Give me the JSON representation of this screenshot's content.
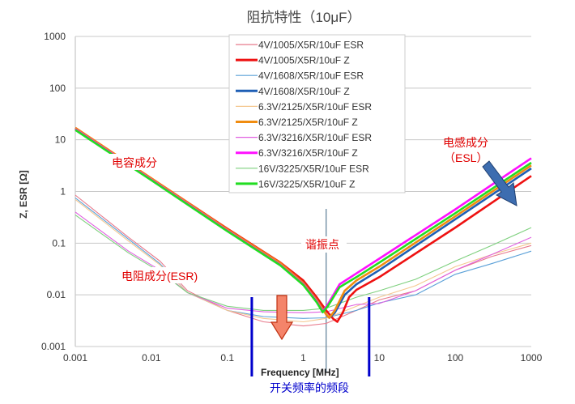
{
  "chart_data": {
    "type": "line",
    "title": "阻抗特性（10μF）",
    "xlabel": "Frequency  [MHz]",
    "ylabel": "Z, ESR [Ω]",
    "xscale": "log",
    "yscale": "log",
    "xlim": [
      0.001,
      1000
    ],
    "ylim": [
      0.001,
      1000
    ],
    "xticks": [
      "0.001",
      "0.01",
      "0.1",
      "1",
      "10",
      "100",
      "1000"
    ],
    "yticks": [
      "0.001",
      "0.01",
      "0.1",
      "1",
      "10",
      "100",
      "1000"
    ],
    "legend_position": "top-center",
    "grid": "horizontal",
    "series": [
      {
        "name": "4V/1005/X5R/10uF ESR",
        "color": "#e87a8c",
        "kind": "esr",
        "x": [
          0.001,
          0.005,
          0.013,
          0.03,
          0.1,
          0.3,
          1,
          2,
          5,
          10,
          30,
          100,
          300,
          1000
        ],
        "y": [
          0.85,
          0.13,
          0.045,
          0.012,
          0.005,
          0.003,
          0.0025,
          0.0028,
          0.005,
          0.008,
          0.012,
          0.03,
          0.055,
          0.09
        ]
      },
      {
        "name": "4V/1005/X5R/10uF Z",
        "color": "#ee1111",
        "kind": "z",
        "x": [
          0.001,
          0.01,
          0.1,
          0.5,
          1,
          1.5,
          2,
          2.5,
          2.8,
          3.3,
          4,
          5,
          10,
          100,
          1000
        ],
        "y": [
          17,
          1.8,
          0.19,
          0.042,
          0.019,
          0.009,
          0.005,
          0.0034,
          0.003,
          0.0045,
          0.009,
          0.0125,
          0.022,
          0.2,
          2.0
        ]
      },
      {
        "name": "4V/1608/X5R/10uF ESR",
        "color": "#5aa0d8",
        "kind": "esr",
        "x": [
          0.001,
          0.005,
          0.013,
          0.03,
          0.1,
          0.3,
          1,
          2,
          5,
          10,
          30,
          100,
          300,
          1000
        ],
        "y": [
          0.75,
          0.12,
          0.04,
          0.011,
          0.005,
          0.0038,
          0.0035,
          0.0036,
          0.005,
          0.007,
          0.01,
          0.025,
          0.04,
          0.07
        ]
      },
      {
        "name": "4V/1608/X5R/10uF Z",
        "color": "#1f5fb5",
        "kind": "z",
        "x": [
          0.001,
          0.01,
          0.1,
          0.5,
          1,
          1.5,
          2,
          2.2,
          2.6,
          3.5,
          5,
          10,
          100,
          1000
        ],
        "y": [
          16.5,
          1.75,
          0.18,
          0.04,
          0.017,
          0.008,
          0.0042,
          0.0036,
          0.0045,
          0.01,
          0.016,
          0.03,
          0.29,
          2.8
        ]
      },
      {
        "name": "6.3V/2125/X5R/10uF ESR",
        "color": "#f5c890",
        "kind": "esr",
        "x": [
          0.001,
          0.005,
          0.013,
          0.03,
          0.1,
          0.3,
          1,
          2,
          5,
          10,
          30,
          100,
          300,
          1000
        ],
        "y": [
          0.7,
          0.11,
          0.038,
          0.011,
          0.005,
          0.0035,
          0.003,
          0.0035,
          0.006,
          0.009,
          0.015,
          0.035,
          0.06,
          0.1
        ]
      },
      {
        "name": "6.3V/2125/X5R/10uF Z",
        "color": "#f08c10",
        "kind": "z",
        "x": [
          0.001,
          0.01,
          0.1,
          0.5,
          1,
          1.5,
          2,
          2.2,
          2.6,
          3.5,
          5,
          10,
          100,
          1000
        ],
        "y": [
          17,
          1.8,
          0.185,
          0.041,
          0.017,
          0.008,
          0.0042,
          0.0036,
          0.005,
          0.012,
          0.019,
          0.035,
          0.33,
          3.2
        ]
      },
      {
        "name": "6.3V/3216/X5R/10uF ESR",
        "color": "#e060e0",
        "kind": "esr",
        "x": [
          0.001,
          0.005,
          0.013,
          0.03,
          0.1,
          0.3,
          1,
          2,
          5,
          10,
          30,
          100,
          300,
          1000
        ],
        "y": [
          0.4,
          0.07,
          0.03,
          0.011,
          0.0055,
          0.0047,
          0.0045,
          0.0047,
          0.0065,
          0.0068,
          0.012,
          0.03,
          0.06,
          0.13
        ]
      },
      {
        "name": "6.3V/3216/X5R/10uF Z",
        "color": "#ff10ff",
        "kind": "z",
        "x": [
          0.001,
          0.01,
          0.1,
          0.5,
          1,
          1.5,
          1.8,
          2.1,
          3,
          5,
          10,
          100,
          1000
        ],
        "y": [
          16,
          1.7,
          0.175,
          0.038,
          0.016,
          0.0075,
          0.0048,
          0.0065,
          0.016,
          0.026,
          0.05,
          0.45,
          4.4
        ]
      },
      {
        "name": "16V/3225/X5R/10uF ESR",
        "color": "#7ed07e",
        "kind": "esr",
        "x": [
          0.001,
          0.005,
          0.013,
          0.03,
          0.1,
          0.3,
          1,
          2,
          5,
          10,
          30,
          100,
          300,
          1000
        ],
        "y": [
          0.35,
          0.065,
          0.028,
          0.011,
          0.006,
          0.005,
          0.005,
          0.0055,
          0.009,
          0.012,
          0.02,
          0.045,
          0.09,
          0.2
        ]
      },
      {
        "name": "16V/3225/X5R/10uF Z",
        "color": "#22dd22",
        "kind": "z",
        "x": [
          0.001,
          0.01,
          0.1,
          0.5,
          1,
          1.5,
          1.8,
          2.1,
          3,
          5,
          10,
          100,
          1000
        ],
        "y": [
          15.5,
          1.65,
          0.17,
          0.037,
          0.0155,
          0.0072,
          0.0046,
          0.006,
          0.014,
          0.022,
          0.042,
          0.38,
          3.6
        ]
      }
    ],
    "annotations": {
      "capacitive": "电容成分",
      "inductive_1": "电感成分",
      "inductive_2": "（ESL）",
      "resonance": "谐振点",
      "resistive": "电阻成分(ESR)",
      "switching_band": "开关频率的频段"
    },
    "resonance_frequency": 2,
    "switching_band_range": [
      0.2,
      7
    ]
  }
}
